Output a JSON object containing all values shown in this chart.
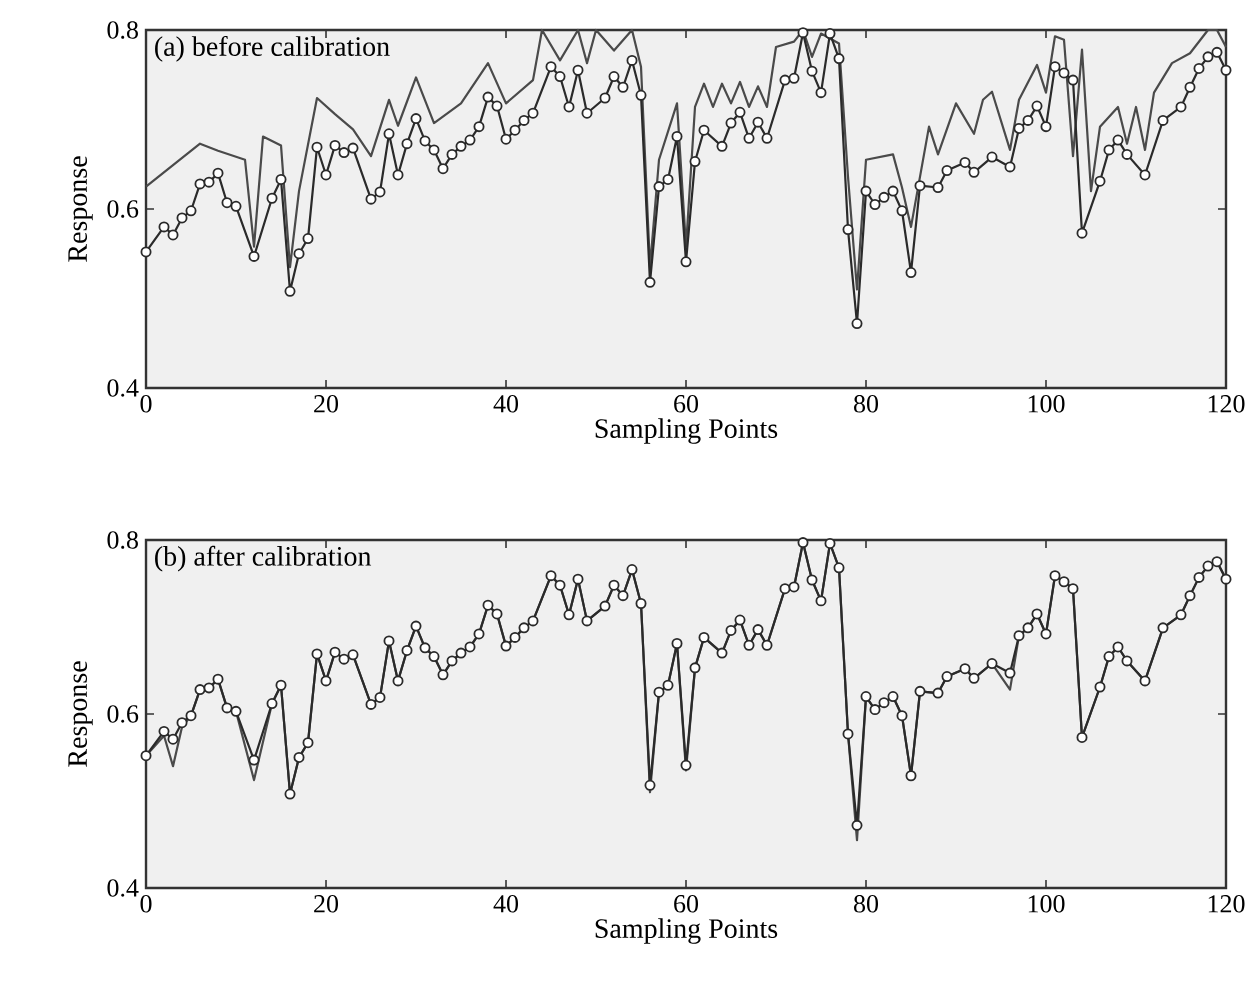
{
  "chart_data": [
    {
      "type": "line",
      "annotations": [
        "(a) before calibration"
      ],
      "xlabel": "Sampling Points",
      "ylabel": "Response",
      "xlim": [
        0,
        120
      ],
      "xticks": [
        0,
        20,
        40,
        60,
        80,
        100,
        120
      ],
      "ylim": [
        0.4,
        0.8
      ],
      "yticks": [
        0.4,
        0.6,
        0.8
      ],
      "line_style": "solid",
      "series": [
        {
          "color": "#4a4a4a",
          "marker": "none",
          "x": [
            0,
            6,
            8,
            11,
            12,
            13,
            15,
            16,
            17,
            19,
            21,
            23,
            25,
            27,
            28,
            30,
            32,
            35,
            38,
            40,
            43,
            44,
            46,
            48,
            49,
            50,
            52,
            54,
            55,
            56,
            57,
            59,
            60,
            61,
            62,
            63,
            64,
            65,
            66,
            67,
            68,
            69,
            70,
            72,
            73,
            74,
            75,
            77,
            78,
            79,
            80,
            83,
            84,
            85,
            87,
            88,
            90,
            92,
            93,
            94,
            96,
            97,
            99,
            100,
            101,
            102,
            103,
            104,
            105,
            106,
            108,
            109,
            110,
            111,
            112,
            114,
            116,
            118,
            119,
            120
          ],
          "values": [
            0.625,
            0.673,
            0.665,
            0.655,
            0.558,
            0.681,
            0.671,
            0.535,
            0.62,
            0.724,
            0.706,
            0.689,
            0.659,
            0.722,
            0.693,
            0.747,
            0.696,
            0.718,
            0.763,
            0.718,
            0.744,
            0.8,
            0.766,
            0.8,
            0.763,
            0.8,
            0.777,
            0.8,
            0.759,
            0.535,
            0.655,
            0.718,
            0.558,
            0.714,
            0.74,
            0.714,
            0.74,
            0.718,
            0.742,
            0.714,
            0.737,
            0.714,
            0.781,
            0.787,
            0.8,
            0.77,
            0.796,
            0.785,
            0.636,
            0.51,
            0.655,
            0.661,
            0.624,
            0.58,
            0.692,
            0.661,
            0.718,
            0.684,
            0.722,
            0.731,
            0.666,
            0.722,
            0.761,
            0.73,
            0.793,
            0.789,
            0.659,
            0.778,
            0.62,
            0.692,
            0.714,
            0.673,
            0.714,
            0.666,
            0.73,
            0.763,
            0.774,
            0.8,
            0.8,
            0.781
          ]
        },
        {
          "color": "#2a2a2a",
          "marker": "circle",
          "x": [
            0,
            2,
            3,
            4,
            5,
            6,
            7,
            8,
            9,
            10,
            12,
            14,
            15,
            16,
            17,
            18,
            19,
            20,
            21,
            22,
            23,
            25,
            26,
            27,
            28,
            29,
            30,
            31,
            32,
            33,
            34,
            35,
            36,
            37,
            38,
            39,
            40,
            41,
            42,
            43,
            45,
            46,
            47,
            48,
            49,
            51,
            52,
            53,
            54,
            55,
            56,
            57,
            58,
            59,
            60,
            61,
            62,
            64,
            65,
            66,
            67,
            68,
            69,
            71,
            72,
            73,
            74,
            75,
            76,
            77,
            78,
            79,
            80,
            81,
            82,
            83,
            84,
            85,
            86,
            88,
            89,
            91,
            92,
            94,
            96,
            97,
            98,
            99,
            100,
            101,
            102,
            103,
            104,
            106,
            107,
            108,
            109,
            111,
            113,
            115,
            116,
            117,
            118,
            119,
            120
          ],
          "values": [
            0.552,
            0.58,
            0.571,
            0.59,
            0.598,
            0.628,
            0.63,
            0.64,
            0.607,
            0.603,
            0.547,
            0.612,
            0.633,
            0.508,
            0.55,
            0.567,
            0.669,
            0.638,
            0.671,
            0.663,
            0.668,
            0.611,
            0.619,
            0.684,
            0.638,
            0.673,
            0.701,
            0.676,
            0.666,
            0.645,
            0.661,
            0.67,
            0.677,
            0.692,
            0.725,
            0.715,
            0.678,
            0.688,
            0.699,
            0.707,
            0.759,
            0.748,
            0.714,
            0.755,
            0.707,
            0.724,
            0.748,
            0.736,
            0.766,
            0.727,
            0.518,
            0.625,
            0.633,
            0.681,
            0.541,
            0.653,
            0.688,
            0.67,
            0.696,
            0.708,
            0.679,
            0.697,
            0.679,
            0.744,
            0.746,
            0.797,
            0.754,
            0.73,
            0.796,
            0.768,
            0.577,
            0.472,
            0.62,
            0.605,
            0.613,
            0.62,
            0.598,
            0.529,
            0.626,
            0.624,
            0.643,
            0.652,
            0.641,
            0.658,
            0.647,
            0.69,
            0.699,
            0.715,
            0.692,
            0.759,
            0.752,
            0.744,
            0.573,
            0.631,
            0.666,
            0.677,
            0.661,
            0.638,
            0.699,
            0.714,
            0.736,
            0.757,
            0.77,
            0.775,
            0.755
          ]
        }
      ]
    },
    {
      "type": "line",
      "annotations": [
        "(b) after calibration"
      ],
      "xlabel": "Sampling Points",
      "ylabel": "Response",
      "xlim": [
        0,
        120
      ],
      "xticks": [
        0,
        20,
        40,
        60,
        80,
        100,
        120
      ],
      "ylim": [
        0.4,
        0.8
      ],
      "yticks": [
        0.4,
        0.6,
        0.8
      ],
      "line_style": "solid",
      "series": [
        {
          "color": "#4a4a4a",
          "marker": "none",
          "x": [
            0,
            2,
            3,
            4,
            5,
            6,
            7,
            8,
            9,
            10,
            12,
            14,
            15,
            16,
            17,
            18,
            19,
            20,
            21,
            22,
            23,
            25,
            26,
            27,
            28,
            29,
            30,
            31,
            32,
            33,
            34,
            35,
            36,
            37,
            38,
            39,
            40,
            41,
            42,
            43,
            45,
            46,
            47,
            48,
            49,
            51,
            52,
            53,
            54,
            55,
            56,
            57,
            58,
            59,
            60,
            61,
            62,
            64,
            65,
            66,
            67,
            68,
            69,
            71,
            72,
            73,
            74,
            75,
            76,
            77,
            78,
            79,
            80,
            81,
            82,
            83,
            84,
            85,
            86,
            88,
            89,
            91,
            92,
            94,
            96,
            97,
            98,
            99,
            100,
            101,
            102,
            103,
            104,
            106,
            107,
            108,
            109,
            111,
            113,
            115,
            116,
            117,
            118,
            119,
            120
          ],
          "values": [
            0.552,
            0.575,
            0.54,
            0.585,
            0.598,
            0.628,
            0.63,
            0.64,
            0.607,
            0.603,
            0.524,
            0.612,
            0.633,
            0.508,
            0.55,
            0.567,
            0.669,
            0.638,
            0.671,
            0.663,
            0.668,
            0.611,
            0.619,
            0.684,
            0.638,
            0.673,
            0.701,
            0.676,
            0.666,
            0.645,
            0.661,
            0.67,
            0.677,
            0.692,
            0.725,
            0.715,
            0.678,
            0.688,
            0.699,
            0.707,
            0.759,
            0.748,
            0.714,
            0.755,
            0.707,
            0.724,
            0.748,
            0.736,
            0.766,
            0.727,
            0.51,
            0.625,
            0.633,
            0.681,
            0.535,
            0.653,
            0.688,
            0.67,
            0.696,
            0.708,
            0.679,
            0.697,
            0.679,
            0.744,
            0.746,
            0.797,
            0.754,
            0.73,
            0.796,
            0.768,
            0.577,
            0.455,
            0.62,
            0.605,
            0.613,
            0.62,
            0.598,
            0.529,
            0.626,
            0.624,
            0.643,
            0.652,
            0.641,
            0.658,
            0.628,
            0.69,
            0.699,
            0.715,
            0.692,
            0.759,
            0.752,
            0.744,
            0.573,
            0.631,
            0.666,
            0.677,
            0.661,
            0.638,
            0.699,
            0.714,
            0.736,
            0.757,
            0.77,
            0.775,
            0.755
          ]
        },
        {
          "color": "#2a2a2a",
          "marker": "circle",
          "x": [
            0,
            2,
            3,
            4,
            5,
            6,
            7,
            8,
            9,
            10,
            12,
            14,
            15,
            16,
            17,
            18,
            19,
            20,
            21,
            22,
            23,
            25,
            26,
            27,
            28,
            29,
            30,
            31,
            32,
            33,
            34,
            35,
            36,
            37,
            38,
            39,
            40,
            41,
            42,
            43,
            45,
            46,
            47,
            48,
            49,
            51,
            52,
            53,
            54,
            55,
            56,
            57,
            58,
            59,
            60,
            61,
            62,
            64,
            65,
            66,
            67,
            68,
            69,
            71,
            72,
            73,
            74,
            75,
            76,
            77,
            78,
            79,
            80,
            81,
            82,
            83,
            84,
            85,
            86,
            88,
            89,
            91,
            92,
            94,
            96,
            97,
            98,
            99,
            100,
            101,
            102,
            103,
            104,
            106,
            107,
            108,
            109,
            111,
            113,
            115,
            116,
            117,
            118,
            119,
            120
          ],
          "values": [
            0.552,
            0.58,
            0.571,
            0.59,
            0.598,
            0.628,
            0.63,
            0.64,
            0.607,
            0.603,
            0.547,
            0.612,
            0.633,
            0.508,
            0.55,
            0.567,
            0.669,
            0.638,
            0.671,
            0.663,
            0.668,
            0.611,
            0.619,
            0.684,
            0.638,
            0.673,
            0.701,
            0.676,
            0.666,
            0.645,
            0.661,
            0.67,
            0.677,
            0.692,
            0.725,
            0.715,
            0.678,
            0.688,
            0.699,
            0.707,
            0.759,
            0.748,
            0.714,
            0.755,
            0.707,
            0.724,
            0.748,
            0.736,
            0.766,
            0.727,
            0.518,
            0.625,
            0.633,
            0.681,
            0.541,
            0.653,
            0.688,
            0.67,
            0.696,
            0.708,
            0.679,
            0.697,
            0.679,
            0.744,
            0.746,
            0.797,
            0.754,
            0.73,
            0.796,
            0.768,
            0.577,
            0.472,
            0.62,
            0.605,
            0.613,
            0.62,
            0.598,
            0.529,
            0.626,
            0.624,
            0.643,
            0.652,
            0.641,
            0.658,
            0.647,
            0.69,
            0.699,
            0.715,
            0.692,
            0.759,
            0.752,
            0.744,
            0.573,
            0.631,
            0.666,
            0.677,
            0.661,
            0.638,
            0.699,
            0.714,
            0.736,
            0.757,
            0.77,
            0.775,
            0.755
          ]
        }
      ]
    }
  ]
}
